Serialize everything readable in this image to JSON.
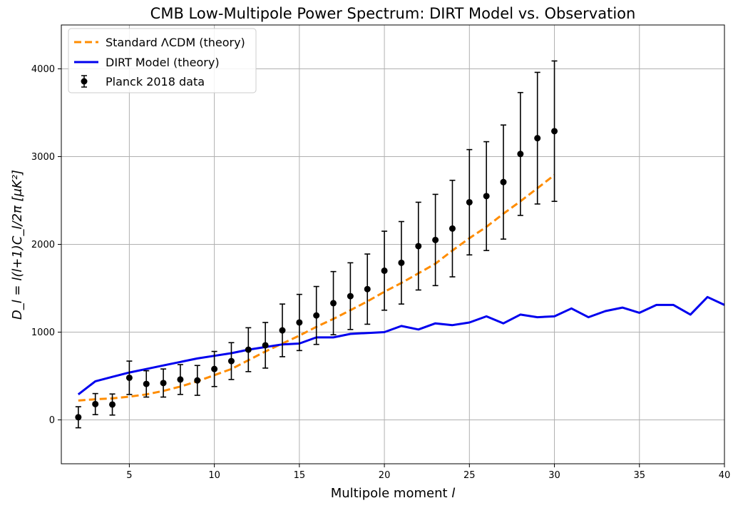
{
  "chart_data": {
    "type": "line",
    "title": "CMB Low-Multipole Power Spectrum: DIRT Model vs. Observation",
    "xlabel_main": "Multipole moment ",
    "xlabel_var": "l",
    "ylabel": "D_l = l(l+1)C_l/2π   [μK²]",
    "xlim": [
      1,
      40
    ],
    "ylim": [
      -500,
      4500
    ],
    "xticks": [
      5,
      10,
      15,
      20,
      25,
      30,
      35,
      40
    ],
    "yticks": [
      0,
      1000,
      2000,
      3000,
      4000
    ],
    "grid": true,
    "legend_position": "top-left",
    "legend": [
      "Standard ΛCDM (theory)",
      "DIRT Model (theory)",
      "Planck 2018 data"
    ],
    "colors": {
      "lcdm": "#ff8c00",
      "dirt": "#0000ee",
      "data": "#000000",
      "grid": "#b0b0b0"
    },
    "series": [
      {
        "name": "Standard ΛCDM (theory)",
        "style": "dashed",
        "x": [
          2,
          3,
          4,
          5,
          6,
          7,
          8,
          9,
          10,
          11,
          12,
          13,
          14,
          15,
          16,
          17,
          18,
          19,
          20,
          21,
          22,
          23,
          24,
          25,
          26,
          27,
          28,
          29,
          30
        ],
        "y": [
          220,
          235,
          245,
          265,
          290,
          330,
          380,
          440,
          510,
          580,
          680,
          780,
          870,
          960,
          1060,
          1150,
          1250,
          1350,
          1460,
          1560,
          1670,
          1780,
          1930,
          2070,
          2200,
          2350,
          2490,
          2640,
          2790
        ]
      },
      {
        "name": "DIRT Model (theory)",
        "style": "solid",
        "x": [
          2,
          3,
          4,
          5,
          6,
          7,
          8,
          9,
          10,
          11,
          12,
          13,
          14,
          15,
          16,
          17,
          18,
          19,
          20,
          21,
          22,
          23,
          24,
          25,
          26,
          27,
          28,
          29,
          30,
          31,
          32,
          33,
          34,
          35,
          36,
          37,
          38,
          39,
          40
        ],
        "y": [
          290,
          440,
          490,
          540,
          580,
          620,
          660,
          700,
          730,
          760,
          800,
          830,
          860,
          870,
          940,
          940,
          980,
          990,
          1000,
          1070,
          1030,
          1100,
          1080,
          1110,
          1180,
          1100,
          1200,
          1170,
          1180,
          1270,
          1170,
          1240,
          1280,
          1220,
          1310,
          1310,
          1200,
          1400,
          1310
        ]
      },
      {
        "name": "Planck 2018 data",
        "style": "errorbar",
        "x": [
          2,
          3,
          4,
          5,
          6,
          7,
          8,
          9,
          10,
          11,
          12,
          13,
          14,
          15,
          16,
          17,
          18,
          19,
          20,
          21,
          22,
          23,
          24,
          25,
          26,
          27,
          28,
          29,
          30
        ],
        "y": [
          30,
          180,
          175,
          480,
          410,
          420,
          460,
          450,
          580,
          670,
          800,
          850,
          1020,
          1110,
          1190,
          1330,
          1410,
          1490,
          1700,
          1790,
          1980,
          2050,
          2180,
          2480,
          2550,
          2710,
          3030,
          3210,
          3290
        ],
        "err": [
          120,
          120,
          120,
          190,
          150,
          160,
          170,
          170,
          200,
          210,
          250,
          260,
          300,
          320,
          330,
          360,
          380,
          400,
          450,
          470,
          500,
          520,
          550,
          600,
          620,
          650,
          700,
          750,
          800
        ]
      }
    ]
  }
}
